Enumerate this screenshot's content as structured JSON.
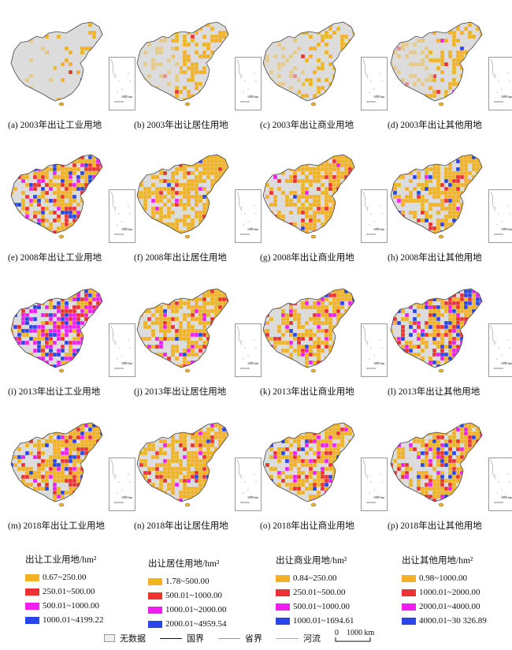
{
  "panels": [
    {
      "caption": "(a) 2003年出让工业用地",
      "dist": [
        0.93,
        0.03,
        0.02,
        0.02
      ],
      "coverage": 0.15
    },
    {
      "caption": "(b) 2003年出让居住用地",
      "dist": [
        0.96,
        0.03,
        0.0,
        0.01
      ],
      "coverage": 0.45
    },
    {
      "caption": "(c) 2003年出让商业用地",
      "dist": [
        0.97,
        0.03,
        0.0,
        0.0
      ],
      "coverage": 0.4
    },
    {
      "caption": "(d) 2003年出让其他用地",
      "dist": [
        0.9,
        0.05,
        0.04,
        0.01
      ],
      "coverage": 0.5
    },
    {
      "caption": "(e) 2008年出让工业用地",
      "dist": [
        0.55,
        0.2,
        0.1,
        0.15
      ],
      "coverage": 0.85
    },
    {
      "caption": "(f) 2008年出让居住用地",
      "dist": [
        0.9,
        0.08,
        0.01,
        0.01
      ],
      "coverage": 0.85
    },
    {
      "caption": "(g) 2008年出让商业用地",
      "dist": [
        0.87,
        0.1,
        0.02,
        0.01
      ],
      "coverage": 0.85
    },
    {
      "caption": "(h) 2008年出让其他用地",
      "dist": [
        0.8,
        0.1,
        0.03,
        0.07
      ],
      "coverage": 0.85
    },
    {
      "caption": "(i) 2013年出让工业用地",
      "dist": [
        0.25,
        0.2,
        0.35,
        0.2
      ],
      "coverage": 0.9
    },
    {
      "caption": "(j) 2013年出让居住用地",
      "dist": [
        0.78,
        0.12,
        0.07,
        0.03
      ],
      "coverage": 0.85
    },
    {
      "caption": "(k) 2013年出让商业用地",
      "dist": [
        0.72,
        0.15,
        0.1,
        0.03
      ],
      "coverage": 0.85
    },
    {
      "caption": "(l) 2013年出让其他用地",
      "dist": [
        0.45,
        0.2,
        0.15,
        0.2
      ],
      "coverage": 0.9
    },
    {
      "caption": "(m) 2018年出让工业用地",
      "dist": [
        0.55,
        0.25,
        0.1,
        0.1
      ],
      "coverage": 0.9
    },
    {
      "caption": "(n) 2018年出让居住用地",
      "dist": [
        0.8,
        0.12,
        0.05,
        0.03
      ],
      "coverage": 0.85
    },
    {
      "caption": "(o) 2018年出让商业用地",
      "dist": [
        0.72,
        0.15,
        0.08,
        0.05
      ],
      "coverage": 0.85
    },
    {
      "caption": "(p) 2018年出让其他用地",
      "dist": [
        0.6,
        0.25,
        0.07,
        0.08
      ],
      "coverage": 0.9
    }
  ],
  "class_colors": [
    "#f2b322",
    "#ee3131",
    "#f01ef0",
    "#2a46e6"
  ],
  "nodata_color": "#dcdcdc",
  "inset_label": "1000 km",
  "legends": [
    {
      "title": "出让工业用地/hm²",
      "items": [
        "0.67~250.00",
        "250.01~500.00",
        "500.01~1000.00",
        "1000.01~4199.22"
      ]
    },
    {
      "title": "出让居住用地/hm²",
      "items": [
        "1.78~500.00",
        "500.01~1000.00",
        "1000.01~2000.00",
        "2000.01~4959.54"
      ]
    },
    {
      "title": "出让商业用地/hm²",
      "items": [
        "0.84~250.00",
        "250.01~500.00",
        "500.01~1000.00",
        "1000.01~1694.61"
      ]
    },
    {
      "title": "出让其他用地/hm²",
      "items": [
        "0.98~1000.00",
        "1000.01~2000.00",
        "2000.01~4000.00",
        "4000.01~30 326.89"
      ]
    }
  ],
  "bottom_legend": {
    "nodata": "无数据",
    "national_border": "国界",
    "provincial_border": "省界",
    "river": "河流",
    "scale": "0    1000 km"
  }
}
